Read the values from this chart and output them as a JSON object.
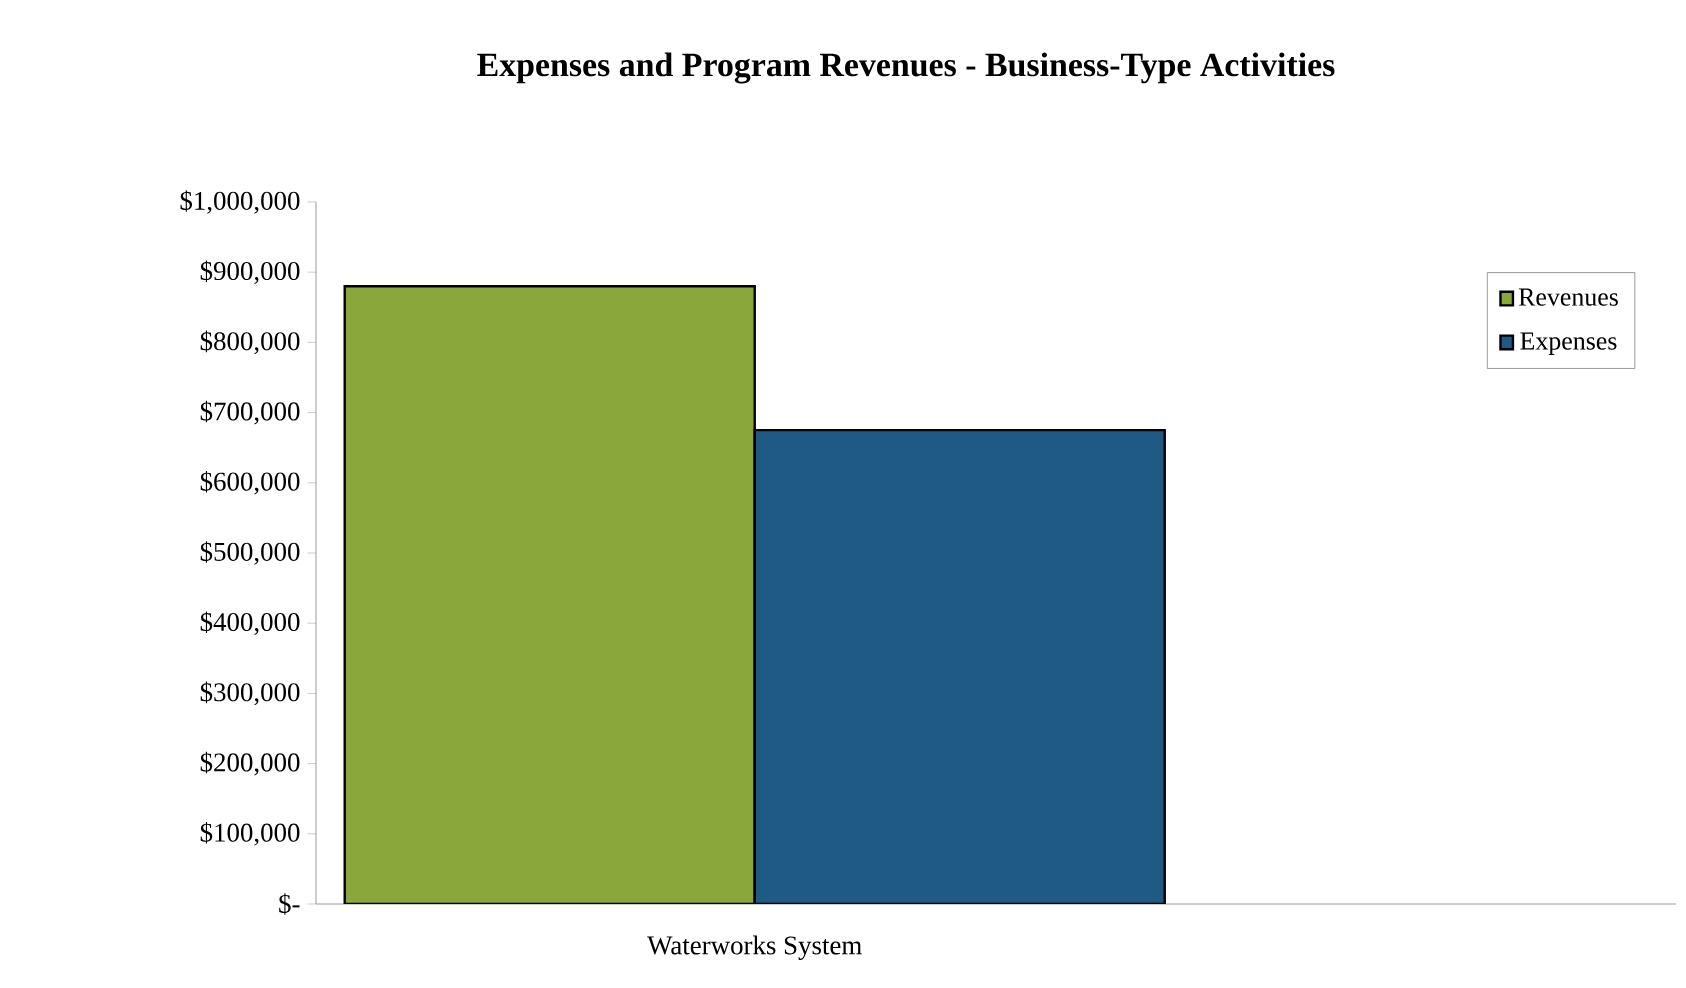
{
  "chart_data": {
    "type": "bar",
    "title": "Expenses and Program Revenues - Business-Type Activities",
    "categories": [
      "Waterworks System"
    ],
    "series": [
      {
        "name": "Revenues",
        "color": "#8aa83a",
        "values": [
          880000
        ]
      },
      {
        "name": "Expenses",
        "color": "#1f5a85",
        "values": [
          675000
        ]
      }
    ],
    "ylim": [
      0,
      1000000
    ],
    "yticks": [
      {
        "value": 0,
        "label": "$-"
      },
      {
        "value": 100000,
        "label": "$100,000"
      },
      {
        "value": 200000,
        "label": "$200,000"
      },
      {
        "value": 300000,
        "label": "$300,000"
      },
      {
        "value": 400000,
        "label": "$400,000"
      },
      {
        "value": 500000,
        "label": "$500,000"
      },
      {
        "value": 600000,
        "label": "$600,000"
      },
      {
        "value": 700000,
        "label": "$700,000"
      },
      {
        "value": 800000,
        "label": "$800,000"
      },
      {
        "value": 900000,
        "label": "$900,000"
      },
      {
        "value": 1000000,
        "label": "$1,000,000"
      }
    ],
    "legend": "top right",
    "grid": false
  }
}
